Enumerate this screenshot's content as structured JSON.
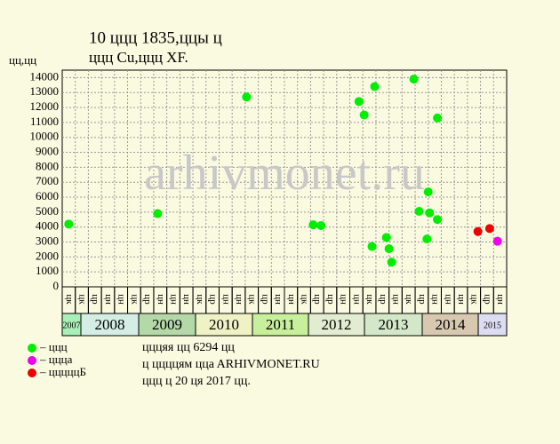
{
  "chart_data": {
    "type": "scatter",
    "title_lines": [
      "10 ццц 1835,ццы ц",
      "ццц Cu,ццц XF."
    ],
    "y_label": "цц,цц",
    "watermark": "arhivmonet.ru",
    "xlim": [
      0,
      34
    ],
    "ylim": [
      0,
      14500
    ],
    "yticks": [
      0,
      1000,
      2000,
      3000,
      4000,
      5000,
      6000,
      7000,
      8000,
      9000,
      10000,
      11000,
      12000,
      13000,
      14000
    ],
    "grid": true,
    "column_labels": [
      "цк",
      "цк",
      "цр",
      "цн",
      "цн",
      "цк",
      "цр",
      "цн",
      "цн",
      "цн",
      "цк",
      "цр",
      "цн",
      "цн",
      "цк",
      "цр",
      "цн",
      "цн",
      "цк",
      "цр",
      "цр",
      "цн",
      "цн",
      "цк",
      "цр",
      "цн",
      "цк",
      "цр",
      "цн",
      "цн",
      "цн",
      "цк",
      "цр",
      "цн"
    ],
    "years": [
      {
        "label": "2007",
        "color": "#a8f0b8"
      },
      {
        "label": "2008",
        "color": "#d4eee6"
      },
      {
        "label": "2009",
        "color": "#b4d8a8"
      },
      {
        "label": "2010",
        "color": "#eef2c4"
      },
      {
        "label": "2011",
        "color": "#c8f09c"
      },
      {
        "label": "2012",
        "color": "#e2ecd0"
      },
      {
        "label": "2013",
        "color": "#d2e8c8"
      },
      {
        "label": "2014",
        "color": "#d8c8b0"
      },
      {
        "label": "2015",
        "color": "#dcdcf2"
      }
    ],
    "series": [
      {
        "name": "– ццц",
        "color": "#00ee00",
        "x": [
          0.5,
          7.3,
          14.1,
          19.2,
          19.8,
          22.7,
          23.1,
          23.9,
          23.7,
          24.8,
          25.0,
          25.2,
          26.9,
          27.3,
          28.0,
          27.9,
          28.1,
          28.7,
          28.7
        ],
        "values": [
          4200,
          4900,
          12700,
          4150,
          4100,
          12400,
          11500,
          13400,
          2700,
          3300,
          2550,
          1650,
          13900,
          5050,
          6350,
          3200,
          4950,
          11300,
          4500
        ]
      },
      {
        "name": "– ццца",
        "color": "#ee00ee",
        "x": [
          33.3
        ],
        "values": [
          3050
        ]
      },
      {
        "name": "– цццццБ",
        "color": "#ee0000",
        "x": [
          31.8,
          32.7
        ],
        "values": [
          3700,
          3900
        ]
      }
    ],
    "notes": [
      "цццяя цц 6294 цц",
      "ц ццццям ццa ARHIVMONET.RU",
      "ццц ц 20 ця 2017 цц."
    ]
  }
}
